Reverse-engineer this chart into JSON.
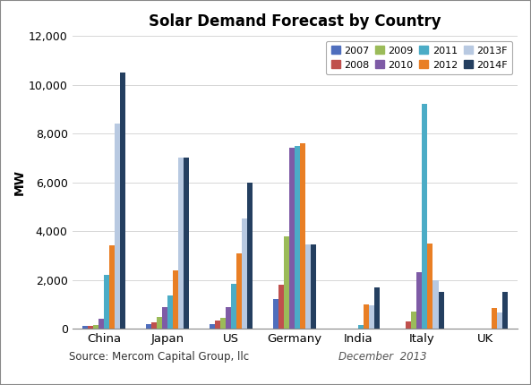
{
  "title": "Solar Demand Forecast by Country",
  "ylabel": "MW",
  "categories": [
    "China",
    "Japan",
    "US",
    "Germany",
    "India",
    "Italy",
    "UK"
  ],
  "series": [
    {
      "label": "2007",
      "color": "#4F6EBD",
      "values": [
        100,
        200,
        200,
        1200,
        0,
        0,
        0
      ]
    },
    {
      "label": "2008",
      "color": "#C0504D",
      "values": [
        100,
        250,
        350,
        1800,
        0,
        300,
        0
      ]
    },
    {
      "label": "2009",
      "color": "#9BBB59",
      "values": [
        150,
        480,
        450,
        3800,
        0,
        700,
        0
      ]
    },
    {
      "label": "2010",
      "color": "#7E5BA6",
      "values": [
        400,
        900,
        900,
        7400,
        0,
        2300,
        0
      ]
    },
    {
      "label": "2011",
      "color": "#4BACC6",
      "values": [
        2200,
        1350,
        1850,
        7500,
        150,
        9200,
        0
      ]
    },
    {
      "label": "2012",
      "color": "#E97F25",
      "values": [
        3400,
        2400,
        3100,
        7600,
        1000,
        3500,
        850
      ]
    },
    {
      "label": "2013F",
      "color": "#B8C9E1",
      "values": [
        8400,
        7000,
        4500,
        3450,
        950,
        2000,
        650
      ]
    },
    {
      "label": "2014F",
      "color": "#243F60",
      "values": [
        10500,
        7000,
        6000,
        3450,
        1700,
        1500,
        1500
      ]
    }
  ],
  "ylim": [
    0,
    12000
  ],
  "yticks": [
    0,
    2000,
    4000,
    6000,
    8000,
    10000,
    12000
  ],
  "source_text": "Source: Mercom Capital Group, llc",
  "date_text": "December  2013",
  "background_color": "#FFFFFF"
}
